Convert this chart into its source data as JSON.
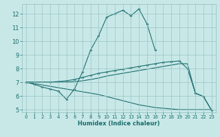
{
  "xlabel": "Humidex (Indice chaleur)",
  "bg_color": "#c8e8e8",
  "grid_color": "#99c4c4",
  "line_color": "#1a6b6b",
  "xlim": [
    -0.5,
    23.5
  ],
  "ylim": [
    4.8,
    12.7
  ],
  "yticks": [
    5,
    6,
    7,
    8,
    9,
    10,
    11,
    12
  ],
  "xticks": [
    0,
    1,
    2,
    3,
    4,
    5,
    6,
    7,
    8,
    9,
    10,
    11,
    12,
    13,
    14,
    15,
    16,
    17,
    18,
    19,
    20,
    21,
    22,
    23
  ],
  "line1_x": [
    0,
    1,
    2,
    3,
    4,
    5,
    6,
    7,
    8,
    9,
    10,
    11,
    12,
    13,
    14,
    15,
    16,
    17,
    18,
    19,
    20,
    21,
    22,
    23
  ],
  "line1_y": [
    7.0,
    6.85,
    6.65,
    6.5,
    6.35,
    5.75,
    6.5,
    7.75,
    9.35,
    10.4,
    11.75,
    12.0,
    12.25,
    11.85,
    12.35,
    11.25,
    9.35,
    null,
    null,
    null,
    null,
    null,
    null,
    null
  ],
  "line2_x": [
    0,
    3,
    4,
    5,
    6,
    7,
    8,
    9,
    10,
    11,
    12,
    13,
    14,
    15,
    16,
    17,
    18,
    19,
    20,
    21,
    22,
    23
  ],
  "line2_y": [
    7.0,
    7.0,
    7.05,
    7.1,
    7.2,
    7.35,
    7.5,
    7.65,
    7.75,
    7.85,
    7.95,
    8.05,
    8.15,
    8.25,
    8.35,
    8.45,
    8.5,
    8.55,
    8.0,
    6.2,
    5.95,
    4.95
  ],
  "line3_x": [
    0,
    5,
    6,
    7,
    8,
    9,
    10,
    11,
    12,
    13,
    14,
    15,
    16,
    17,
    18,
    19,
    20,
    21,
    22,
    23
  ],
  "line3_y": [
    7.0,
    7.0,
    7.05,
    7.1,
    7.2,
    7.3,
    7.45,
    7.55,
    7.65,
    7.75,
    7.85,
    7.95,
    8.05,
    8.15,
    8.25,
    8.35,
    8.35,
    6.2,
    5.95,
    4.95
  ],
  "line4_x": [
    0,
    5,
    6,
    7,
    8,
    9,
    10,
    11,
    12,
    13,
    14,
    15,
    16,
    17,
    18,
    19,
    20,
    21,
    22,
    23
  ],
  "line4_y": [
    7.0,
    6.5,
    6.4,
    6.3,
    6.2,
    6.1,
    5.95,
    5.8,
    5.65,
    5.5,
    5.35,
    5.25,
    5.15,
    5.1,
    5.05,
    5.0,
    5.0,
    5.0,
    5.0,
    5.0
  ]
}
